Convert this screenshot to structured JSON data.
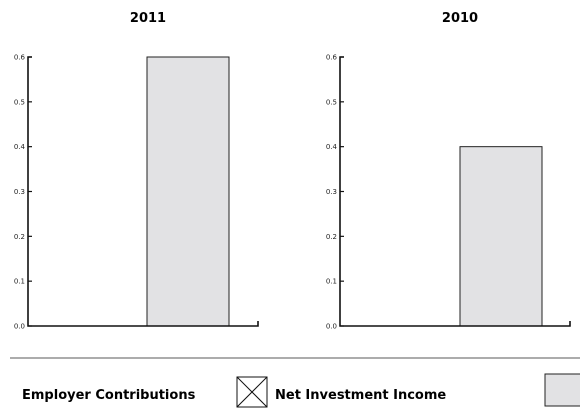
{
  "colors": {
    "bar_fill": "#e2e2e4",
    "axis": "#111111"
  },
  "chart_data": [
    {
      "type": "bar",
      "title": "2011",
      "categories": [
        "Employer Contributions",
        "Net Investment Income"
      ],
      "series": [
        {
          "values": [
            0,
            0.6
          ]
        }
      ],
      "ylim": [
        0,
        0.6
      ],
      "yticks": [
        "0.0",
        "0.1",
        "0.2",
        "0.3",
        "0.4",
        "0.5",
        "0.6"
      ],
      "xlabel": "",
      "ylabel": "",
      "grid": false
    },
    {
      "type": "bar",
      "title": "2010",
      "categories": [
        "Employer Contributions",
        "Net Investment Income"
      ],
      "series": [
        {
          "values": [
            0,
            0.4
          ]
        }
      ],
      "ylim": [
        0,
        0.6
      ],
      "yticks": [
        "0.0",
        "0.1",
        "0.2",
        "0.3",
        "0.4",
        "0.5",
        "0.6"
      ],
      "xlabel": "",
      "ylabel": "",
      "grid": false
    }
  ],
  "legend": {
    "placement": "bottom",
    "items": [
      {
        "label": "Employer Contributions",
        "swatch": "none"
      },
      {
        "label": "Net Investment Income",
        "swatch": "crossed-box-icon"
      },
      {
        "label": "",
        "swatch": "gray-box"
      }
    ]
  }
}
